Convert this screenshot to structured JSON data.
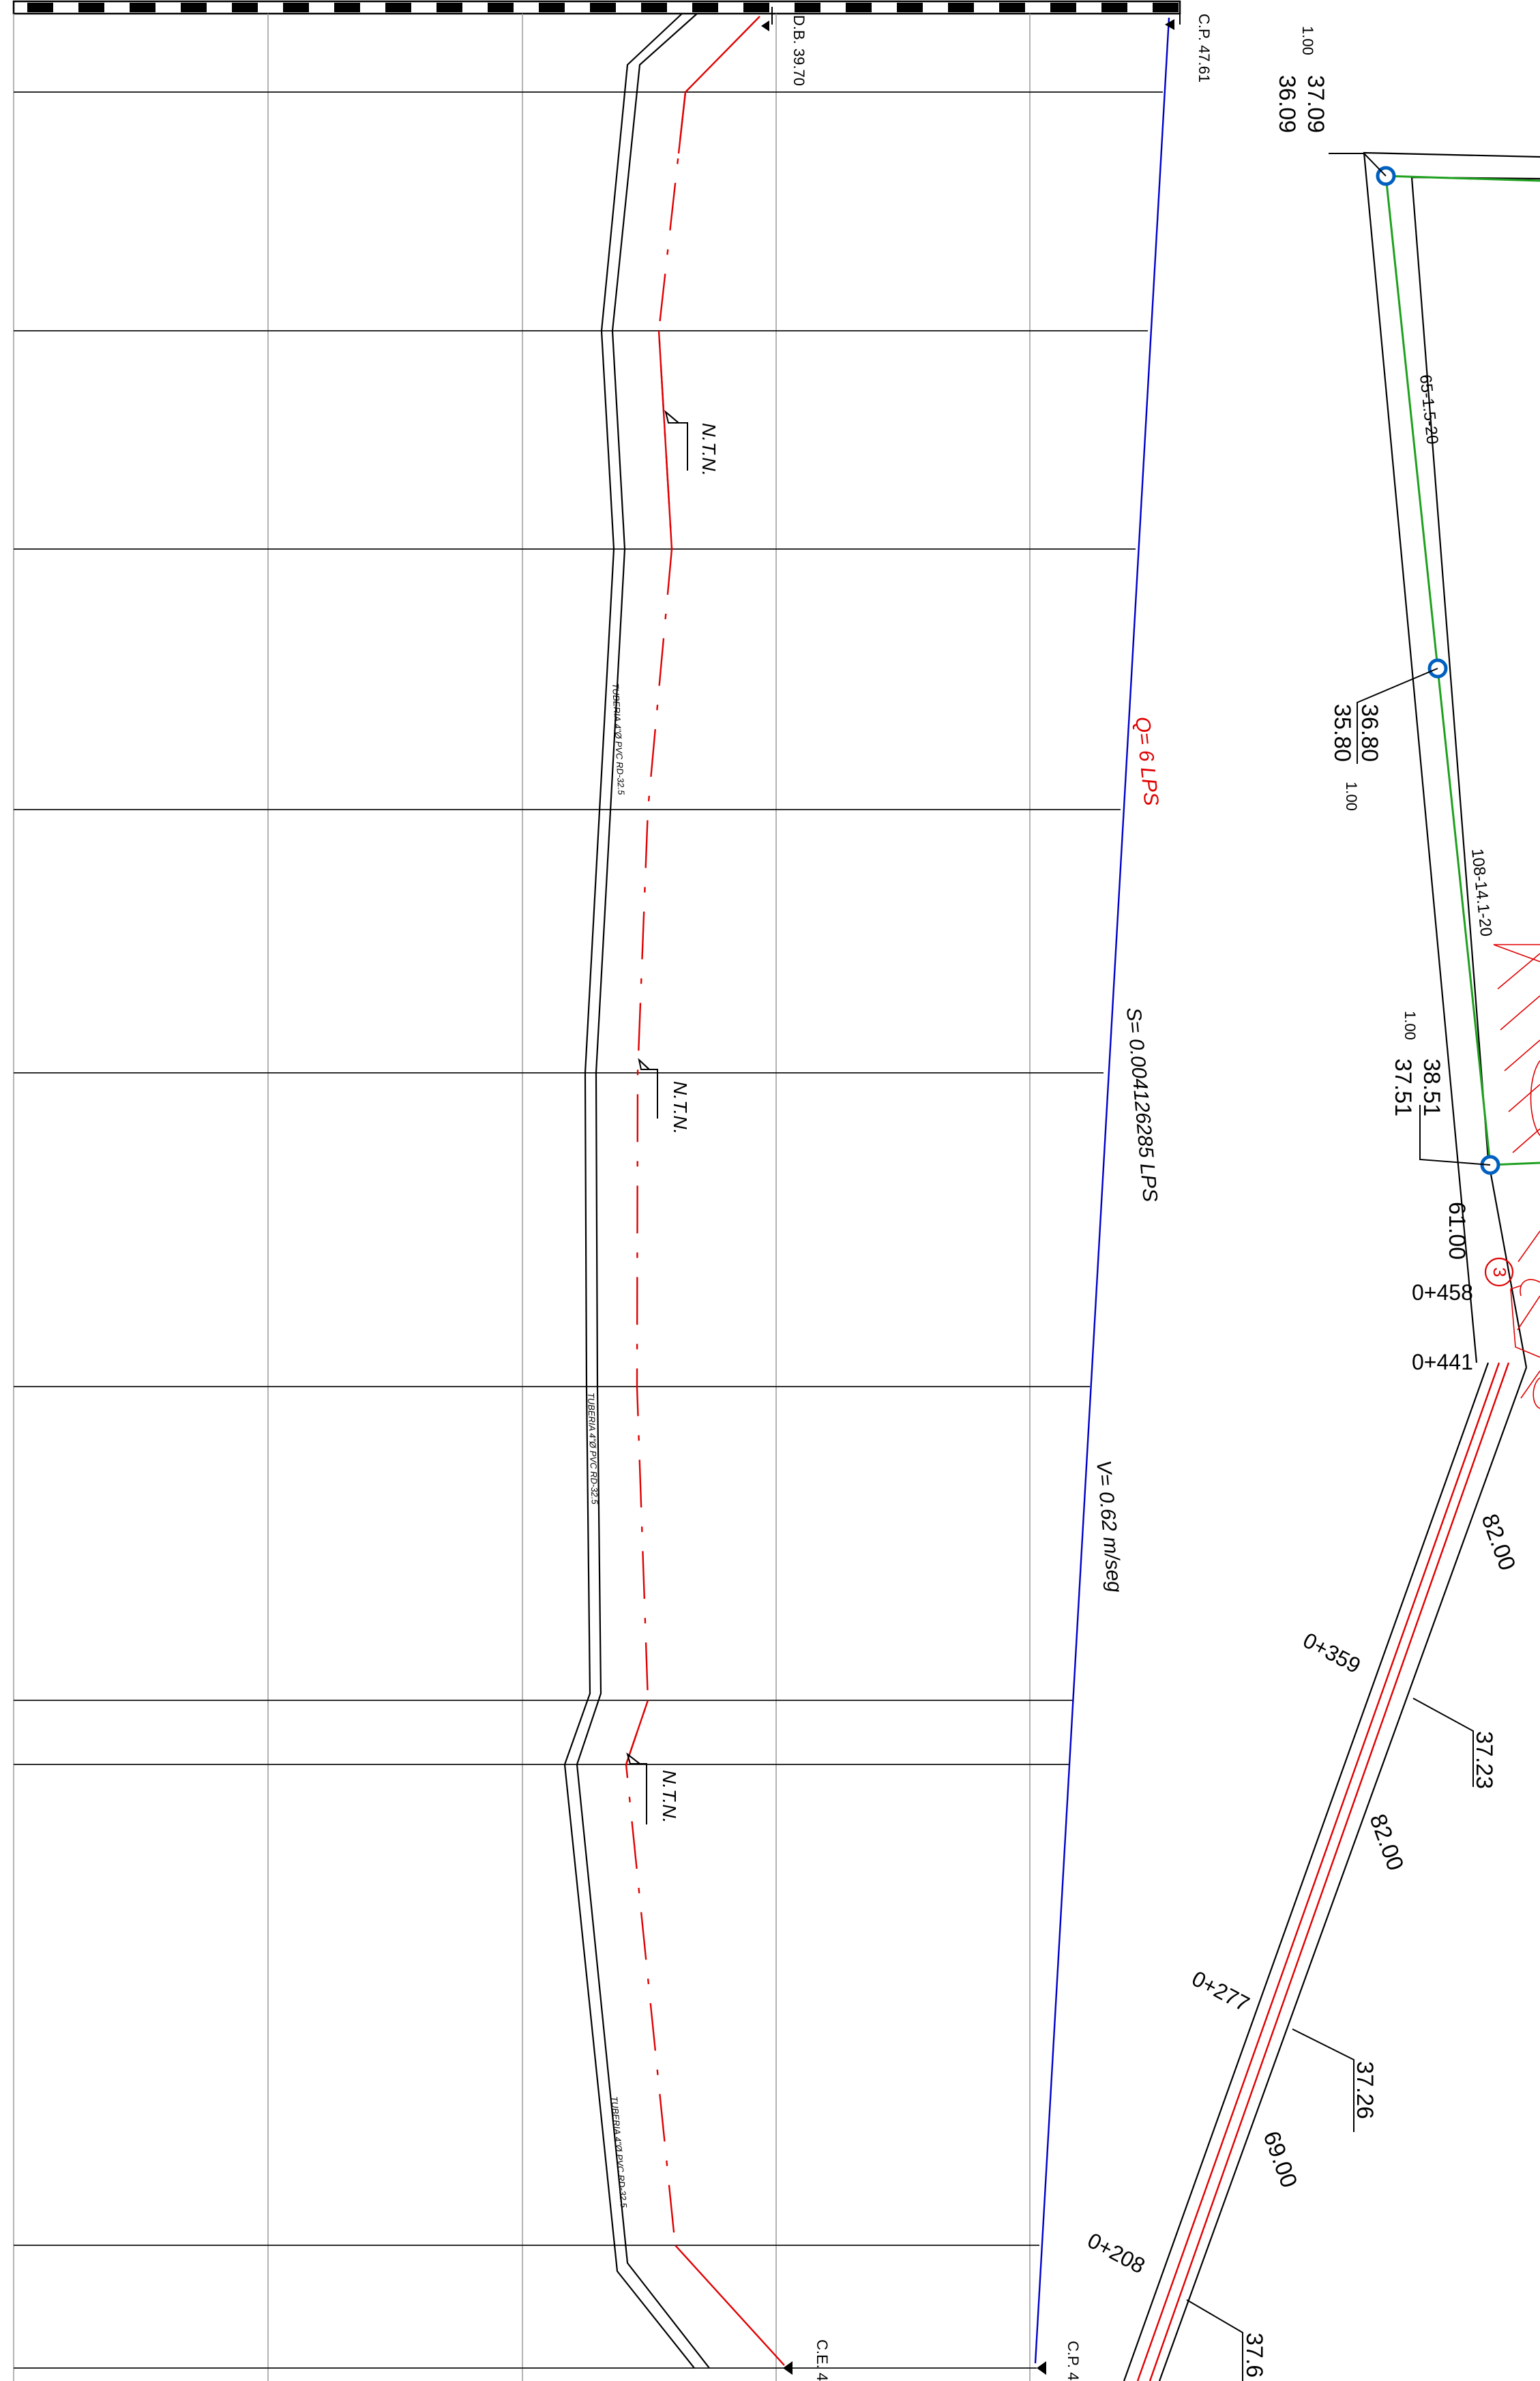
{
  "colors": {
    "terrain": "#000000",
    "pipe": "#e00000",
    "hydraulic_grade": "#0000c8",
    "plan_pipe": "#1ea01e",
    "node": "#0060c0"
  },
  "profile": {
    "top_left_marker": "D.B. 39.70",
    "top_right_marker": "C.P. 47.61",
    "bottom_left_marker": "C.E. 4",
    "bottom_right_marker": "C.P. 4",
    "flow_label": "Q= 6 LPS",
    "slope_label": "S= 0.004126285 LPS",
    "velocity_label": "V= 0.62 m/seg",
    "ntn_label": "N.T.N.",
    "pipe_label_1": "TUBERIA 4\"Ø PVC RD-32.5",
    "pipe_label_2": "TUBERIA 4\"Ø PVC RD-32.5",
    "pipe_label_3": "TUBERIA 4\"Ø PVC RD-32.5"
  },
  "plan": {
    "node_a": {
      "top": "37.09",
      "bottom": "36.09",
      "depth": "1.00"
    },
    "node_b": {
      "top": "36.80",
      "bottom": "35.80",
      "depth": "1.00"
    },
    "node_c": {
      "top": "38.51",
      "bottom": "37.51",
      "depth": "1.00"
    },
    "segment_ab": "65-1.5-20",
    "segment_bc": "108-14.1-20",
    "node_number": "3",
    "dist_61": "61.00",
    "dist_82a": "82.00",
    "dist_82b": "82.00",
    "dist_69": "69.00",
    "station_458": "0+458",
    "station_441": "0+441",
    "station_359": "0+359",
    "station_277": "0+277",
    "station_208": "0+208",
    "elev_3723": "37.23",
    "elev_3726": "37.26",
    "elev_376": "37.6"
  }
}
